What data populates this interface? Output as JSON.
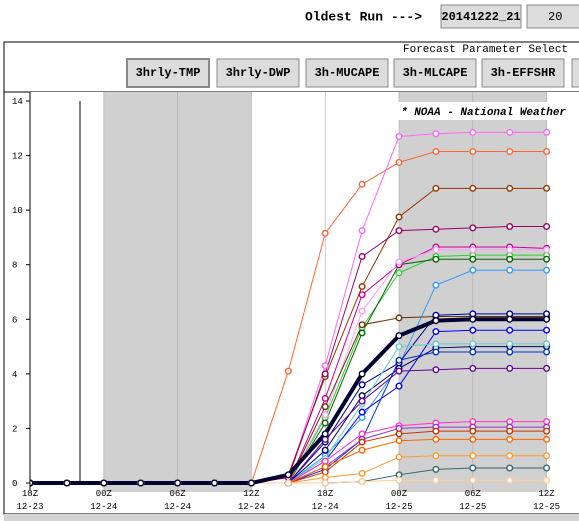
{
  "ui": {
    "oldest_run_label": "Oldest Run --->",
    "oldest_run_button": "20141222_21",
    "next_run_button": "20",
    "panel_title": "Forecast Parameter Select",
    "buttons": [
      "3hrly-TMP",
      "3hrly-DWP",
      "3h-MUCAPE",
      "3h-MLCAPE",
      "3h-EFFSHR"
    ],
    "annotation": "* NOAA - National Weather"
  },
  "chart_data": {
    "type": "line",
    "categories": [
      [
        "18Z",
        "12-23"
      ],
      null,
      [
        "00Z",
        "12-24"
      ],
      null,
      [
        "06Z",
        "12-24"
      ],
      null,
      [
        "12Z",
        "12-24"
      ],
      null,
      [
        "18Z",
        "12-24"
      ],
      null,
      [
        "00Z",
        "12-25"
      ],
      null,
      [
        "06Z",
        "12-25"
      ],
      null,
      [
        "12Z",
        "12-25"
      ]
    ],
    "ylim": [
      0,
      14
    ],
    "yticks": [
      0,
      2,
      4,
      6,
      8,
      10,
      12,
      14
    ],
    "grid": "x",
    "series": [
      {
        "color": "#ff6633",
        "values": [
          0,
          0,
          0,
          0,
          0,
          0,
          0,
          4.1,
          9.15,
          10.95,
          11.75,
          12.15,
          12.15,
          12.15,
          12.15
        ]
      },
      {
        "color": "#ff66ff",
        "values": [
          0,
          0,
          0,
          0,
          0,
          0,
          0,
          0.2,
          4.3,
          9.25,
          12.7,
          12.8,
          12.85,
          12.85,
          12.85
        ]
      },
      {
        "color": "#993300",
        "values": [
          0,
          0,
          0,
          0,
          0,
          0,
          0,
          0.3,
          3.9,
          7.2,
          9.75,
          10.8,
          10.8,
          10.8,
          10.8
        ]
      },
      {
        "color": "#990066",
        "values": [
          0,
          0,
          0,
          0,
          0,
          0,
          0,
          0.2,
          4.0,
          8.3,
          9.25,
          9.3,
          9.35,
          9.4,
          9.4
        ]
      },
      {
        "color": "#33cc33",
        "values": [
          0,
          0,
          0,
          0,
          0,
          0,
          0,
          0,
          2.4,
          5.7,
          7.7,
          8.3,
          8.35,
          8.35,
          8.35
        ]
      },
      {
        "color": "#006600",
        "values": [
          0,
          0,
          0,
          0,
          0,
          0,
          0,
          0,
          2.2,
          5.5,
          8.0,
          8.2,
          8.2,
          8.2,
          8.2
        ]
      },
      {
        "color": "#cc0099",
        "values": [
          0,
          0,
          0,
          0,
          0,
          0,
          0,
          0,
          3.1,
          6.9,
          8.0,
          8.65,
          8.65,
          8.65,
          8.6
        ]
      },
      {
        "color": "#ff99ff",
        "values": [
          0,
          0,
          0,
          0,
          0,
          0,
          0,
          0,
          2.5,
          6.3,
          8.1,
          8.55,
          8.55,
          8.55,
          8.55
        ]
      },
      {
        "color": "#3399ff",
        "values": [
          0,
          0,
          0,
          0,
          0,
          0,
          0,
          0,
          1.0,
          2.4,
          4.3,
          7.25,
          7.8,
          7.8,
          7.8
        ]
      },
      {
        "color": "#663300",
        "values": [
          0,
          0,
          0,
          0,
          0,
          0,
          0,
          0,
          2.8,
          5.8,
          6.05,
          6.1,
          6.1,
          6.1,
          6.1
        ]
      },
      {
        "color": "#000099",
        "values": [
          0,
          0,
          0,
          0,
          0,
          0,
          0,
          0,
          1.5,
          3.6,
          4.4,
          6.15,
          6.2,
          6.2,
          6.2
        ]
      },
      {
        "color": "#0000ff",
        "values": [
          0,
          0,
          0,
          0,
          0,
          0,
          0,
          0,
          0.8,
          2.6,
          3.55,
          5.55,
          5.6,
          5.6,
          5.6
        ]
      },
      {
        "color": "#000066",
        "values": [
          0,
          0,
          0,
          0,
          0,
          0,
          0,
          0,
          1.2,
          3.2,
          4.2,
          4.95,
          5.0,
          5.0,
          5.0
        ]
      },
      {
        "color": "#0033cc",
        "values": [
          0,
          0,
          0,
          0,
          0,
          0,
          0,
          0,
          0.5,
          1.6,
          4.5,
          4.8,
          4.8,
          4.8,
          4.8
        ]
      },
      {
        "color": "#66cccc",
        "values": [
          0,
          0,
          0,
          0,
          0,
          0,
          0,
          0,
          0.9,
          2.9,
          5.0,
          5.1,
          5.1,
          5.1,
          5.1
        ]
      },
      {
        "color": "#660099",
        "values": [
          0,
          0,
          0,
          0,
          0,
          0,
          0,
          0,
          1.6,
          3.0,
          4.1,
          4.15,
          4.2,
          4.2,
          4.2
        ]
      },
      {
        "color": "#ff33cc",
        "values": [
          0,
          0,
          0,
          0,
          0,
          0,
          0,
          0,
          0.8,
          1.8,
          2.1,
          2.2,
          2.25,
          2.25,
          2.25
        ]
      },
      {
        "color": "#9933cc",
        "values": [
          0,
          0,
          0,
          0,
          0,
          0,
          0,
          0,
          0.6,
          1.6,
          2.0,
          2.05,
          2.05,
          2.05,
          2.05
        ]
      },
      {
        "color": "#cc3300",
        "values": [
          0,
          0,
          0,
          0,
          0,
          0,
          0,
          0,
          0.4,
          1.5,
          1.8,
          1.9,
          1.9,
          1.9,
          1.9
        ]
      },
      {
        "color": "#ff6600",
        "values": [
          0,
          0,
          0,
          0,
          0,
          0,
          0,
          0,
          0.6,
          1.2,
          1.55,
          1.6,
          1.6,
          1.6,
          1.6
        ]
      },
      {
        "color": "#ff9933",
        "values": [
          0,
          0,
          0,
          0,
          0,
          0,
          0,
          0,
          0.2,
          0.35,
          0.95,
          1.0,
          1.0,
          1.0,
          1.0
        ]
      },
      {
        "color": "#336666",
        "values": [
          0,
          0,
          0,
          0,
          0,
          0,
          0,
          0,
          0,
          0.05,
          0.3,
          0.5,
          0.55,
          0.55,
          0.55
        ]
      },
      {
        "color": "#ffcc99",
        "values": [
          0,
          0,
          0,
          0,
          0,
          0,
          0,
          0,
          0,
          0.05,
          0.1,
          0.1,
          0.1,
          0.1,
          0.1
        ]
      },
      {
        "color": "#000033",
        "line_width": 4,
        "values": [
          0,
          0,
          0,
          0,
          0,
          0,
          0,
          0.3,
          1.8,
          4.0,
          5.4,
          5.95,
          6.0,
          6.0,
          6.0
        ]
      }
    ]
  }
}
